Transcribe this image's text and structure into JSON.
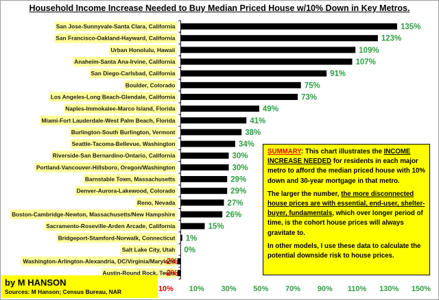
{
  "chart_data": {
    "type": "bar",
    "orientation": "horizontal",
    "title": "Household  Income Increase Needed to Buy Median Priced House w/10% Down in Key Metros.",
    "categories": [
      "San Jose-Sunnyvale-Santa Clara, California",
      "San Francisco-Oakland-Hayward, California",
      "Urban Honolulu, Hawaii",
      "Anaheim-Santa Ana-Irvine, California",
      "San Diego-Carlsbad, California",
      "Boulder, Colorado",
      "Los Angeles-Long Beach-Glendale, California",
      "Naples-Immokalee-Marco Island, Florida",
      "Miami-Fort Lauderdale-West Palm Beach, Florida",
      "Burlington-South Burlington, Vermont",
      "Seattle-Tacoma-Bellevue, Washington",
      "Riverside-San Bernardino-Ontario, California",
      "Portland-Vancouver-Hillsboro, Oregon/Washington",
      "Barnstable Town, Massachusetts",
      "Denver-Aurora-Lakewood, Colorado",
      "Reno, Nevada",
      "Boston-Cambridge-Newton, Massachusetts/New Hampshire",
      "Sacramento-Roseville-Arden Arcade, California",
      "Bridgeport-Stamford-Norwalk, Connecticut",
      "Salt Lake City, Utah",
      "Washington-Arlington-Alexandria, DC/Virginia/Maryland",
      "Austin-Round Rock, Texas"
    ],
    "values": [
      135,
      123,
      109,
      107,
      91,
      75,
      73,
      49,
      41,
      38,
      34,
      30,
      30,
      29,
      29,
      27,
      26,
      15,
      1,
      0,
      -2,
      -2
    ],
    "value_labels": [
      "135%",
      "123%",
      "109%",
      "107%",
      "91%",
      "75%",
      "73%",
      "49%",
      "41%",
      "38%",
      "34%",
      "30%",
      "30%",
      "29%",
      "29%",
      "27%",
      "26%",
      "15%",
      "1%",
      "0%",
      "-2%",
      "-2%"
    ],
    "xlim": [
      -10,
      150
    ],
    "x_ticks": [
      -10,
      10,
      30,
      50,
      70,
      90,
      110,
      130,
      150
    ],
    "x_tick_labels": [
      "-10%",
      "10%",
      "30%",
      "50%",
      "70%",
      "90%",
      "110%",
      "130%",
      "150%"
    ],
    "grid": false,
    "colors": {
      "bar": "#000000",
      "positive_label": "#2e9e40",
      "negative_label": "#e00000",
      "category_highlight": "#ffff99"
    }
  },
  "summary": {
    "label": "SUMMARY",
    "p1_text": ":  This chart illustrates the ",
    "p1_emph": "INCOME INCREASE NEEDED",
    "p1_rest": " for residents in each major metro to afford the median priced house with 10% down and 30-year mortgage in that metro.",
    "p2_a": "The larger the number, ",
    "p2_b": "the more disconnected house prices are with essential, end-user, shelter-buyer, fundamentals",
    "p2_c": ", which over longer period of time, is the cohort house prices will always gravitate to.",
    "p3": "In other models, I use these data to calculate the potential downside risk to house prices."
  },
  "credit": {
    "name": "by M HANSON",
    "sources": "Sources: M Hanson; Census Bureau, NAR"
  }
}
